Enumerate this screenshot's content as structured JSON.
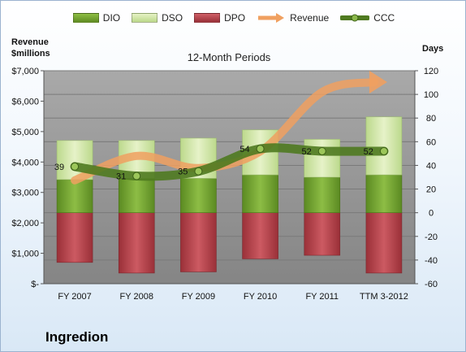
{
  "chart_data": {
    "type": "bar",
    "title": "12-Month Periods",
    "company": "Ingredion",
    "y_left_label_line1": "Revenue",
    "y_left_label_line2": "$millions",
    "y_right_label": "Days",
    "y_left_ticks": [
      "$-",
      "$1,000",
      "$2,000",
      "$3,000",
      "$4,000",
      "$5,000",
      "$6,000",
      "$7,000"
    ],
    "y_left_lim": [
      0,
      7000
    ],
    "y_right_ticks": [
      "-60",
      "-40",
      "-20",
      "0",
      "20",
      "40",
      "60",
      "80",
      "100",
      "120"
    ],
    "y_right_lim": [
      -60,
      120
    ],
    "categories": [
      "FY 2007",
      "FY 2008",
      "FY 2009",
      "FY 2010",
      "FY 2011",
      "TTM 3-2012"
    ],
    "legend": [
      "DIO",
      "DSO",
      "DPO",
      "Revenue",
      "CCC"
    ],
    "colors": {
      "DIO": "#6f9c2c",
      "DSO": "#cfe5a3",
      "DPO": "#b4424a",
      "Revenue": "#f0a060",
      "CCC": "#4f7a20",
      "plot_bg": "#8c8c8c"
    },
    "series": [
      {
        "name": "DIO",
        "values": [
          28,
          29,
          29,
          32,
          30,
          32
        ]
      },
      {
        "name": "DSO",
        "values": [
          33,
          32,
          34,
          38,
          32,
          49
        ]
      },
      {
        "name": "DPO",
        "values": [
          -42,
          -51,
          -50,
          -39,
          -36,
          -51
        ]
      },
      {
        "name": "Revenue",
        "values": [
          3400,
          4200,
          3800,
          4350,
          6300,
          6600
        ]
      },
      {
        "name": "CCC",
        "values": [
          39,
          31,
          35,
          54,
          52,
          52
        ]
      }
    ],
    "ccc_labels": [
      "39",
      "31",
      "35",
      "54",
      "52",
      "52"
    ]
  }
}
